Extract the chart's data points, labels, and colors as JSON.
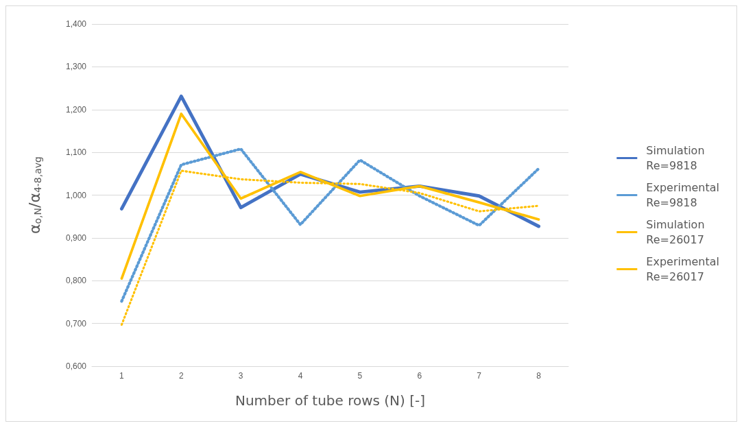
{
  "chart_data": {
    "type": "line",
    "xlabel": "Number of tube rows (N) [-]",
    "ylabel": "α$_{o,N}$/α$_{4-8,avg}$",
    "categories": [
      "1",
      "2",
      "3",
      "4",
      "5",
      "6",
      "7",
      "8"
    ],
    "series": [
      {
        "name": "Simulation\nRe=9818",
        "color": "#4472c4",
        "line_style": "solid",
        "values": [
          0.968,
          1.231,
          0.971,
          1.049,
          1.007,
          1.021,
          0.998,
          0.927
        ]
      },
      {
        "name": "Experimental\nRe=9818",
        "color": "#5b9bd5",
        "line_style": "dotted",
        "values": [
          0.752,
          1.071,
          1.108,
          0.931,
          1.082,
          0.998,
          0.929,
          1.062
        ]
      },
      {
        "name": "Simulation\nRe=26017",
        "color": "#ffc000",
        "line_style": "solid",
        "values": [
          0.805,
          1.19,
          0.992,
          1.054,
          0.998,
          1.021,
          0.983,
          0.943
        ]
      },
      {
        "name": "Experimental\nRe=26017",
        "color": "#ffc000",
        "line_style": "dotted",
        "values": [
          0.697,
          1.057,
          1.037,
          1.029,
          1.026,
          1.005,
          0.962,
          0.975
        ]
      }
    ],
    "ylim": [
      0.6,
      1.4
    ],
    "yticks": [
      {
        "value": 0.6,
        "label": "0,600"
      },
      {
        "value": 0.7,
        "label": "0,700"
      },
      {
        "value": 0.8,
        "label": "0,800"
      },
      {
        "value": 0.9,
        "label": "0,900"
      },
      {
        "value": 1.0,
        "label": "1,000"
      },
      {
        "value": 1.1,
        "label": "1,100"
      },
      {
        "value": 1.2,
        "label": "1,200"
      },
      {
        "value": 1.3,
        "label": "1,300"
      },
      {
        "value": 1.4,
        "label": "1,400"
      }
    ],
    "grid": "y",
    "legend": "right",
    "marker": "none"
  }
}
